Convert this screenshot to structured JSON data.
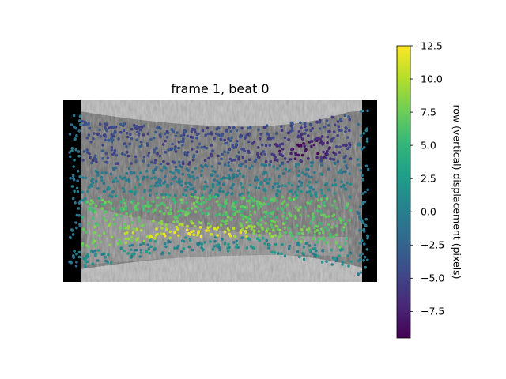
{
  "chart_data": {
    "type": "scatter",
    "title": "frame 1, beat 0",
    "background": "grayscale microscopy image of a tissue strip",
    "colormap": "viridis",
    "colormap_stops": [
      "#440154",
      "#482878",
      "#3e4989",
      "#31688e",
      "#26828e",
      "#1f9e89",
      "#35b779",
      "#6ece58",
      "#b5de2b",
      "#fde725"
    ],
    "colorbar": {
      "label": "row (vertical) displacement (pixels)",
      "range": [
        -9.5,
        12.5
      ],
      "ticks": [
        "12.5",
        "10.0",
        "7.5",
        "5.0",
        "2.5",
        "0.0",
        "−2.5",
        "−5.0",
        "−7.5"
      ],
      "tick_values": [
        12.5,
        10.0,
        7.5,
        5.0,
        2.5,
        0.0,
        -2.5,
        -5.0,
        -7.5
      ]
    },
    "displacement_pattern": {
      "left_edge_posts": -1.0,
      "right_edge_posts": -0.5,
      "top_band_typical": -4.5,
      "top_right_minimum": -9.0,
      "middle_band_typical": 0.5,
      "lower_band_typical": 6.5,
      "lower_center_maximum": 12.0
    },
    "grid": false,
    "axes_visible": false
  }
}
